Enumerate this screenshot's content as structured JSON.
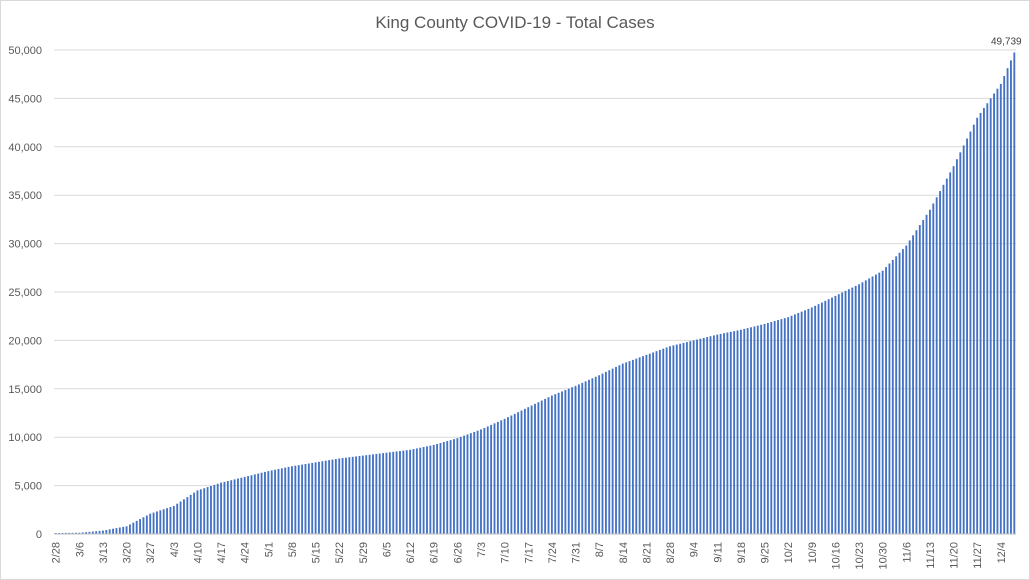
{
  "chart_data": {
    "type": "bar",
    "title": "King County COVID-19 - Total Cases",
    "xlabel": "",
    "ylabel": "",
    "ylim": [
      0,
      50000
    ],
    "y_ticks": [
      "0",
      "5,000",
      "10,000",
      "15,000",
      "20,000",
      "25,000",
      "30,000",
      "35,000",
      "40,000",
      "45,000",
      "50,000"
    ],
    "y_tick_values": [
      0,
      5000,
      10000,
      15000,
      20000,
      25000,
      30000,
      35000,
      40000,
      45000,
      50000
    ],
    "grid": true,
    "legend": "none",
    "bar_color": "#4472c4",
    "x_start_date": "2/28",
    "x_label_every_days": 7,
    "x_tick_labels": [
      "2/28",
      "3/6",
      "3/13",
      "3/20",
      "3/27",
      "4/3",
      "4/10",
      "4/17",
      "4/24",
      "5/1",
      "5/8",
      "5/15",
      "5/22",
      "5/29",
      "6/5",
      "6/12",
      "6/19",
      "6/26",
      "7/3",
      "7/10",
      "7/17",
      "7/24",
      "7/31",
      "8/7",
      "8/14",
      "8/21",
      "8/28",
      "9/4",
      "9/11",
      "9/18",
      "9/25",
      "10/2",
      "10/9",
      "10/16",
      "10/23",
      "10/30",
      "11/6",
      "11/13",
      "11/20",
      "11/27",
      "12/4"
    ],
    "anchor_values": [
      {
        "date": "2/28",
        "value": 100
      },
      {
        "date": "3/6",
        "value": 130
      },
      {
        "date": "3/13",
        "value": 350
      },
      {
        "date": "3/20",
        "value": 800
      },
      {
        "date": "3/27",
        "value": 2100
      },
      {
        "date": "4/3",
        "value": 2900
      },
      {
        "date": "4/10",
        "value": 4500
      },
      {
        "date": "4/17",
        "value": 5300
      },
      {
        "date": "4/24",
        "value": 5900
      },
      {
        "date": "5/1",
        "value": 6500
      },
      {
        "date": "5/8",
        "value": 7000
      },
      {
        "date": "5/15",
        "value": 7400
      },
      {
        "date": "5/22",
        "value": 7800
      },
      {
        "date": "5/29",
        "value": 8100
      },
      {
        "date": "6/5",
        "value": 8400
      },
      {
        "date": "6/12",
        "value": 8700
      },
      {
        "date": "6/19",
        "value": 9200
      },
      {
        "date": "6/26",
        "value": 9900
      },
      {
        "date": "7/3",
        "value": 10800
      },
      {
        "date": "7/10",
        "value": 11900
      },
      {
        "date": "7/17",
        "value": 13100
      },
      {
        "date": "7/24",
        "value": 14300
      },
      {
        "date": "7/31",
        "value": 15300
      },
      {
        "date": "8/7",
        "value": 16400
      },
      {
        "date": "8/14",
        "value": 17600
      },
      {
        "date": "8/21",
        "value": 18500
      },
      {
        "date": "8/28",
        "value": 19400
      },
      {
        "date": "9/4",
        "value": 20000
      },
      {
        "date": "9/11",
        "value": 20600
      },
      {
        "date": "9/18",
        "value": 21100
      },
      {
        "date": "9/25",
        "value": 21700
      },
      {
        "date": "10/2",
        "value": 22400
      },
      {
        "date": "10/9",
        "value": 23400
      },
      {
        "date": "10/16",
        "value": 24600
      },
      {
        "date": "10/23",
        "value": 25800
      },
      {
        "date": "10/30",
        "value": 27200
      },
      {
        "date": "11/6",
        "value": 29800
      },
      {
        "date": "11/13",
        "value": 33500
      },
      {
        "date": "11/20",
        "value": 38000
      },
      {
        "date": "11/27",
        "value": 43000
      },
      {
        "date": "12/4",
        "value": 46500
      },
      {
        "date": "12/8",
        "value": 49739
      }
    ],
    "last_value_label": "49,739"
  }
}
